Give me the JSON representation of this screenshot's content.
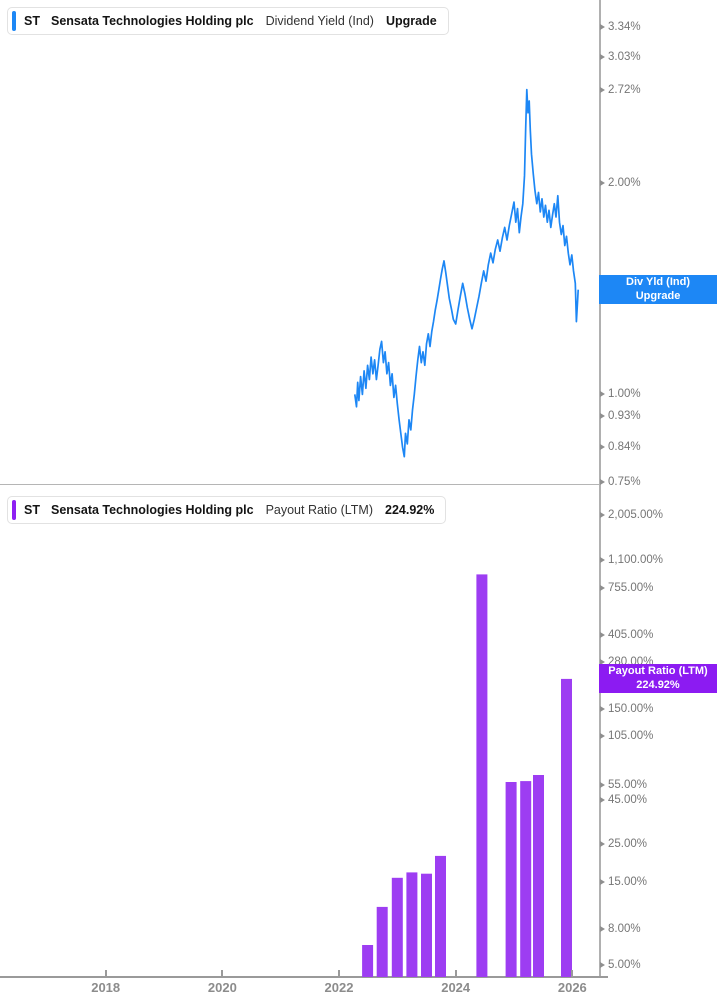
{
  "panels": [
    {
      "accent": "#1d87f5",
      "header": {
        "ticker": "ST",
        "company": "Sensata Technologies Holding plc",
        "metric": "Dividend Yield (Ind)",
        "value": "Upgrade"
      },
      "badge": {
        "line1": "Div Yld (Ind)",
        "line2": "Upgrade",
        "color": "#1d87f5"
      },
      "y_tick_labels": [
        "3.34%",
        "3.03%",
        "2.72%",
        "2.00%",
        "1.00%",
        "0.93%",
        "0.84%",
        "0.75%"
      ]
    },
    {
      "accent": "#8e1ff2",
      "header": {
        "ticker": "ST",
        "company": "Sensata Technologies Holding plc",
        "metric": "Payout Ratio (LTM)",
        "value": "224.92%"
      },
      "badge": {
        "line1": "Payout Ratio (LTM)",
        "line2": "224.92%",
        "color": "#8c1bf2"
      },
      "y_tick_labels": [
        "2,005.00%",
        "1,100.00%",
        "755.00%",
        "405.00%",
        "280.00%",
        "150.00%",
        "105.00%",
        "55.00%",
        "45.00%",
        "25.00%",
        "15.00%",
        "8.00%",
        "5.00%"
      ]
    }
  ],
  "x_axis": {
    "tick_labels": [
      "2018",
      "2020",
      "2022",
      "2024",
      "2026"
    ],
    "tick_years": [
      2018,
      2020,
      2022,
      2024,
      2026
    ]
  },
  "chart_data": [
    {
      "type": "line",
      "title": "ST Sensata Technologies Holding plc — Dividend Yield (Ind)",
      "unit": "%",
      "y_scale": "log",
      "y_ticks": [
        3.34,
        3.03,
        2.72,
        2.0,
        1.0,
        0.93,
        0.84,
        0.75
      ],
      "x_range": [
        2016.2,
        2026.46
      ],
      "legend_position": "right-badge",
      "series": [
        {
          "name": "Div Yld (Ind)",
          "color": "#1d87f5",
          "points": [
            [
              2022.27,
              1.0
            ],
            [
              2022.3,
              0.96
            ],
            [
              2022.32,
              1.04
            ],
            [
              2022.34,
              0.98
            ],
            [
              2022.37,
              1.06
            ],
            [
              2022.4,
              1.0
            ],
            [
              2022.43,
              1.08
            ],
            [
              2022.46,
              1.02
            ],
            [
              2022.49,
              1.1
            ],
            [
              2022.52,
              1.05
            ],
            [
              2022.55,
              1.13
            ],
            [
              2022.58,
              1.07
            ],
            [
              2022.61,
              1.12
            ],
            [
              2022.64,
              1.05
            ],
            [
              2022.67,
              1.1
            ],
            [
              2022.7,
              1.16
            ],
            [
              2022.73,
              1.19
            ],
            [
              2022.76,
              1.11
            ],
            [
              2022.79,
              1.15
            ],
            [
              2022.82,
              1.07
            ],
            [
              2022.85,
              1.11
            ],
            [
              2022.88,
              1.03
            ],
            [
              2022.91,
              1.07
            ],
            [
              2022.94,
              0.99
            ],
            [
              2022.97,
              1.03
            ],
            [
              2023.0,
              0.97
            ],
            [
              2023.03,
              0.92
            ],
            [
              2023.06,
              0.88
            ],
            [
              2023.09,
              0.84
            ],
            [
              2023.12,
              0.815
            ],
            [
              2023.14,
              0.88
            ],
            [
              2023.17,
              0.85
            ],
            [
              2023.2,
              0.92
            ],
            [
              2023.23,
              0.89
            ],
            [
              2023.26,
              0.95
            ],
            [
              2023.29,
              1.0
            ],
            [
              2023.32,
              1.06
            ],
            [
              2023.35,
              1.12
            ],
            [
              2023.38,
              1.17
            ],
            [
              2023.41,
              1.11
            ],
            [
              2023.44,
              1.15
            ],
            [
              2023.47,
              1.1
            ],
            [
              2023.5,
              1.18
            ],
            [
              2023.53,
              1.22
            ],
            [
              2023.56,
              1.17
            ],
            [
              2023.59,
              1.23
            ],
            [
              2023.62,
              1.27
            ],
            [
              2023.65,
              1.32
            ],
            [
              2023.68,
              1.36
            ],
            [
              2023.71,
              1.41
            ],
            [
              2023.74,
              1.46
            ],
            [
              2023.77,
              1.51
            ],
            [
              2023.8,
              1.55
            ],
            [
              2023.83,
              1.49
            ],
            [
              2023.86,
              1.43
            ],
            [
              2023.89,
              1.37
            ],
            [
              2023.93,
              1.32
            ],
            [
              2023.96,
              1.28
            ],
            [
              2024.0,
              1.26
            ],
            [
              2024.04,
              1.32
            ],
            [
              2024.08,
              1.38
            ],
            [
              2024.12,
              1.44
            ],
            [
              2024.16,
              1.39
            ],
            [
              2024.2,
              1.33
            ],
            [
              2024.24,
              1.28
            ],
            [
              2024.28,
              1.24
            ],
            [
              2024.32,
              1.28
            ],
            [
              2024.36,
              1.33
            ],
            [
              2024.4,
              1.38
            ],
            [
              2024.44,
              1.44
            ],
            [
              2024.48,
              1.5
            ],
            [
              2024.52,
              1.45
            ],
            [
              2024.56,
              1.53
            ],
            [
              2024.6,
              1.59
            ],
            [
              2024.64,
              1.54
            ],
            [
              2024.68,
              1.61
            ],
            [
              2024.72,
              1.66
            ],
            [
              2024.76,
              1.6
            ],
            [
              2024.8,
              1.67
            ],
            [
              2024.84,
              1.73
            ],
            [
              2024.88,
              1.66
            ],
            [
              2024.92,
              1.74
            ],
            [
              2024.96,
              1.81
            ],
            [
              2025.0,
              1.88
            ],
            [
              2025.03,
              1.76
            ],
            [
              2025.06,
              1.84
            ],
            [
              2025.09,
              1.7
            ],
            [
              2025.12,
              1.79
            ],
            [
              2025.15,
              1.87
            ],
            [
              2025.18,
              2.05
            ],
            [
              2025.2,
              2.4
            ],
            [
              2025.22,
              2.72
            ],
            [
              2025.24,
              2.52
            ],
            [
              2025.26,
              2.62
            ],
            [
              2025.28,
              2.38
            ],
            [
              2025.3,
              2.2
            ],
            [
              2025.33,
              2.06
            ],
            [
              2025.36,
              1.95
            ],
            [
              2025.39,
              1.87
            ],
            [
              2025.42,
              1.94
            ],
            [
              2025.45,
              1.82
            ],
            [
              2025.48,
              1.9
            ],
            [
              2025.51,
              1.79
            ],
            [
              2025.54,
              1.86
            ],
            [
              2025.57,
              1.76
            ],
            [
              2025.6,
              1.83
            ],
            [
              2025.63,
              1.73
            ],
            [
              2025.66,
              1.8
            ],
            [
              2025.69,
              1.87
            ],
            [
              2025.72,
              1.79
            ],
            [
              2025.75,
              1.92
            ],
            [
              2025.78,
              1.76
            ],
            [
              2025.81,
              1.69
            ],
            [
              2025.84,
              1.74
            ],
            [
              2025.87,
              1.63
            ],
            [
              2025.9,
              1.68
            ],
            [
              2025.93,
              1.59
            ],
            [
              2025.96,
              1.53
            ],
            [
              2025.99,
              1.58
            ],
            [
              2026.02,
              1.5
            ],
            [
              2026.05,
              1.44
            ],
            [
              2026.07,
              1.27
            ],
            [
              2026.09,
              1.36
            ],
            [
              2026.1,
              1.41
            ]
          ]
        }
      ]
    },
    {
      "type": "bar",
      "title": "ST Sensata Technologies Holding plc — Payout Ratio (LTM)",
      "unit": "%",
      "y_scale": "log",
      "current_value": 224.92,
      "y_ticks": [
        2005,
        1100,
        755,
        405,
        280,
        150,
        105,
        55,
        45,
        25,
        15,
        8,
        5
      ],
      "x_range": [
        2016.2,
        2026.46
      ],
      "color": "#9d3df2",
      "x": [
        2022.49,
        2022.74,
        2023.0,
        2023.25,
        2023.5,
        2023.74,
        2024.45,
        2024.95,
        2025.2,
        2025.42,
        2025.9
      ],
      "values": [
        6.5,
        10.8,
        15.9,
        17.1,
        16.8,
        21.3,
        905,
        57.0,
        57.7,
        62.6,
        224.92
      ]
    }
  ]
}
